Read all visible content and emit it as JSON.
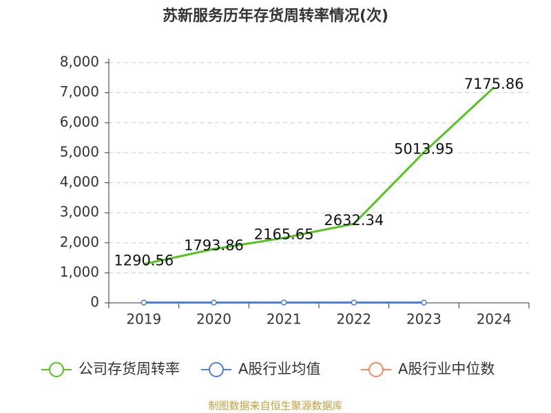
{
  "chart_data": {
    "type": "line",
    "title": "苏新服务历年存货周转率情况(次)",
    "categories": [
      "2019",
      "2020",
      "2021",
      "2022",
      "2023",
      "2024"
    ],
    "series": [
      {
        "name": "公司存货周转率",
        "color": "#52c41a",
        "values": [
          1290.56,
          1793.86,
          2165.65,
          2632.34,
          5013.95,
          7175.86
        ]
      },
      {
        "name": "A股行业均值",
        "color": "#4a7fe0",
        "values": [
          12,
          12,
          12,
          12,
          12,
          null
        ]
      },
      {
        "name": "A股行业中位数",
        "color": "#f4895f",
        "values": [
          8,
          8,
          8,
          8,
          8,
          null
        ]
      }
    ],
    "ylim": [
      0,
      8000
    ],
    "yticks": [
      0,
      {
        "value": 1000,
        "label": "1,000"
      },
      {
        "value": 2000,
        "label": "2,000"
      },
      {
        "value": 3000,
        "label": "3,000"
      },
      {
        "value": 4000,
        "label": "4,000"
      },
      {
        "value": 5000,
        "label": "5,000"
      },
      {
        "value": 6000,
        "label": "6,000"
      },
      {
        "value": 7000,
        "label": "7,000"
      },
      {
        "value": 8000,
        "label": "8,000"
      }
    ],
    "grid": true,
    "legend": "bottom",
    "source": "制图数据来自恒生聚源数据库"
  }
}
